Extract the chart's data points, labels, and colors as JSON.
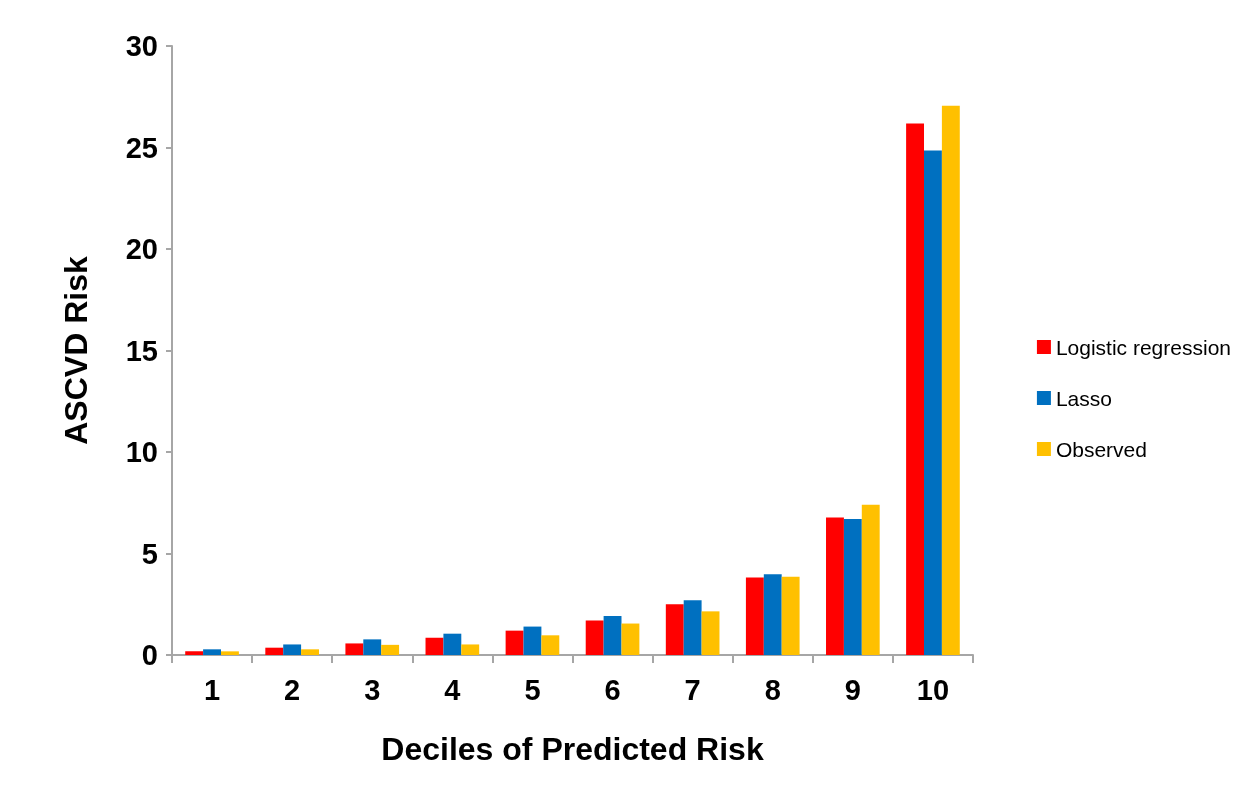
{
  "chart_data": {
    "type": "bar",
    "xlabel": "Deciles of Predicted Risk",
    "ylabel": "ASCVD Risk",
    "categories": [
      "1",
      "2",
      "3",
      "4",
      "5",
      "6",
      "7",
      "8",
      "9",
      "10"
    ],
    "series": [
      {
        "name": "Logistic regression",
        "color": "#ff0000",
        "values": [
          0.18,
          0.36,
          0.57,
          0.85,
          1.2,
          1.7,
          2.5,
          3.82,
          6.77,
          26.18
        ]
      },
      {
        "name": "Lasso",
        "color": "#0070c0",
        "values": [
          0.28,
          0.52,
          0.77,
          1.05,
          1.4,
          1.92,
          2.7,
          3.98,
          6.7,
          24.85
        ]
      },
      {
        "name": "Observed",
        "color": "#ffc000",
        "values": [
          0.18,
          0.28,
          0.5,
          0.52,
          0.97,
          1.55,
          2.15,
          3.85,
          7.4,
          27.06
        ]
      }
    ],
    "ylim": [
      0,
      30
    ],
    "yticks": [
      0,
      5,
      10,
      15,
      20,
      25,
      30
    ],
    "grid": false,
    "legend": "right"
  }
}
